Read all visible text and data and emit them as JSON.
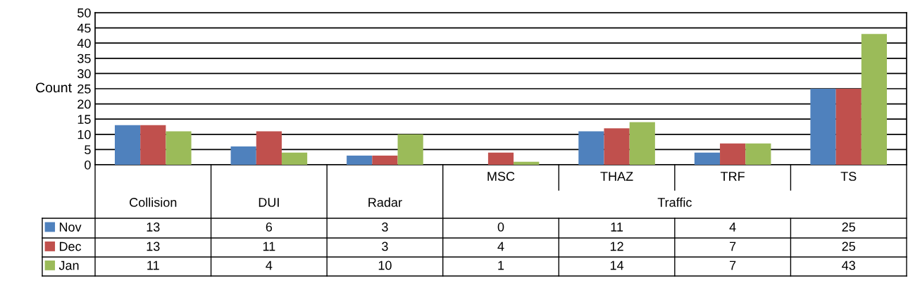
{
  "chart_data": {
    "type": "bar",
    "ylabel": "Count",
    "categories": [
      "Collision",
      "DUI",
      "Radar",
      "MSC",
      "THAZ",
      "TRF",
      "TS"
    ],
    "series": [
      {
        "name": "Nov",
        "color": "#4f81bd",
        "values": [
          13,
          6,
          3,
          0,
          11,
          4,
          25
        ]
      },
      {
        "name": "Dec",
        "color": "#c0504d",
        "values": [
          13,
          11,
          3,
          4,
          12,
          7,
          25
        ]
      },
      {
        "name": "Jan",
        "color": "#9bbb59",
        "values": [
          11,
          4,
          10,
          1,
          14,
          7,
          43
        ]
      }
    ],
    "ylim": [
      0,
      50
    ],
    "yticks": [
      0,
      5,
      10,
      15,
      20,
      25,
      30,
      35,
      40,
      45,
      50
    ],
    "grid": "y",
    "legend": "bottom left",
    "data_labels": true,
    "annotations": [
      "Traffic"
    ]
  }
}
